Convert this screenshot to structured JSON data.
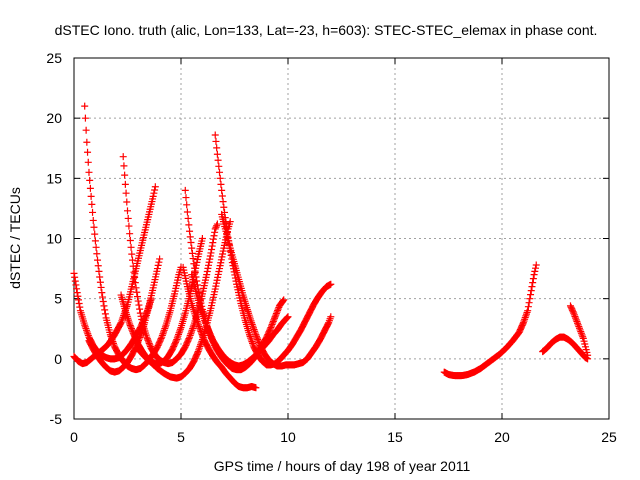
{
  "chart_data": {
    "type": "scatter",
    "title": "dSTEC Iono. truth (alic, Lon=133, Lat=-23, h=603): STEC-STEC_elemax in phase cont.",
    "xlabel": "GPS time / hours of day 198 of year 2011",
    "ylabel": "dSTEC  / TECUs",
    "xlim": [
      0,
      25
    ],
    "ylim": [
      -5,
      25
    ],
    "xticks": [
      0,
      5,
      10,
      15,
      20,
      25
    ],
    "yticks": [
      -5,
      0,
      5,
      10,
      15,
      20,
      25
    ],
    "grid": true,
    "marker": "plus",
    "color": "#ff0000",
    "series": [
      {
        "points": [
          [
            0.0,
            7.1
          ],
          [
            0.15,
            5.5
          ],
          [
            0.3,
            4.0
          ],
          [
            0.5,
            2.8
          ],
          [
            0.7,
            1.8
          ],
          [
            0.9,
            1.1
          ],
          [
            1.1,
            0.6
          ],
          [
            1.3,
            0.3
          ],
          [
            1.5,
            0.1
          ],
          [
            1.7,
            0.0
          ],
          [
            1.9,
            0.0
          ],
          [
            2.1,
            0.1
          ],
          [
            2.3,
            0.4
          ],
          [
            2.5,
            0.8
          ],
          [
            2.7,
            1.3
          ],
          [
            2.9,
            1.9
          ],
          [
            3.1,
            2.6
          ],
          [
            3.3,
            3.4
          ],
          [
            3.5,
            4.3
          ],
          [
            3.6,
            4.9
          ]
        ]
      },
      {
        "points": [
          [
            0.0,
            0.2
          ],
          [
            0.2,
            -0.2
          ],
          [
            0.4,
            -0.4
          ],
          [
            0.6,
            -0.3
          ],
          [
            0.8,
            0.0
          ],
          [
            1.0,
            0.3
          ],
          [
            1.3,
            0.7
          ],
          [
            1.6,
            1.2
          ],
          [
            1.9,
            2.0
          ],
          [
            2.2,
            3.0
          ],
          [
            2.5,
            4.5
          ],
          [
            2.7,
            6.0
          ],
          [
            2.9,
            7.5
          ],
          [
            3.1,
            9.0
          ],
          [
            3.3,
            10.5
          ],
          [
            3.5,
            12.0
          ],
          [
            3.7,
            13.5
          ],
          [
            3.8,
            14.3
          ]
        ]
      },
      {
        "points": [
          [
            0.5,
            21.0
          ],
          [
            0.6,
            18.0
          ],
          [
            0.7,
            15.5
          ],
          [
            0.8,
            13.5
          ],
          [
            0.9,
            11.5
          ],
          [
            1.0,
            9.8
          ],
          [
            1.1,
            8.2
          ],
          [
            1.2,
            6.8
          ],
          [
            1.3,
            5.5
          ],
          [
            1.4,
            4.4
          ],
          [
            1.5,
            3.4
          ],
          [
            1.7,
            2.0
          ],
          [
            1.9,
            1.0
          ],
          [
            2.1,
            0.3
          ],
          [
            2.3,
            -0.2
          ],
          [
            2.5,
            -0.6
          ],
          [
            2.7,
            -0.8
          ],
          [
            2.9,
            -0.9
          ],
          [
            3.1,
            -0.8
          ],
          [
            3.3,
            -0.5
          ],
          [
            3.5,
            -0.1
          ],
          [
            3.7,
            0.4
          ],
          [
            3.9,
            1.0
          ],
          [
            4.1,
            1.8
          ],
          [
            4.3,
            2.8
          ],
          [
            4.5,
            4.0
          ],
          [
            4.7,
            5.4
          ],
          [
            4.9,
            7.0
          ],
          [
            5.0,
            7.6
          ]
        ]
      },
      {
        "points": [
          [
            0.7,
            1.5
          ],
          [
            0.9,
            0.8
          ],
          [
            1.1,
            0.2
          ],
          [
            1.3,
            -0.3
          ],
          [
            1.5,
            -0.7
          ],
          [
            1.7,
            -1.0
          ],
          [
            1.9,
            -1.1
          ],
          [
            2.1,
            -1.0
          ],
          [
            2.3,
            -0.7
          ],
          [
            2.5,
            -0.3
          ],
          [
            2.7,
            0.3
          ],
          [
            2.9,
            1.0
          ],
          [
            3.1,
            1.9
          ],
          [
            3.3,
            3.0
          ],
          [
            3.5,
            4.4
          ],
          [
            3.7,
            5.9
          ],
          [
            3.9,
            7.5
          ],
          [
            4.0,
            8.3
          ]
        ]
      },
      {
        "points": [
          [
            2.3,
            16.8
          ],
          [
            2.4,
            14.5
          ],
          [
            2.5,
            12.3
          ],
          [
            2.6,
            10.4
          ],
          [
            2.7,
            8.7
          ],
          [
            2.8,
            7.2
          ],
          [
            2.9,
            5.9
          ],
          [
            3.0,
            4.8
          ],
          [
            3.1,
            3.8
          ],
          [
            3.2,
            3.0
          ],
          [
            3.4,
            1.8
          ],
          [
            3.6,
            0.9
          ],
          [
            3.8,
            0.3
          ],
          [
            4.0,
            -0.1
          ],
          [
            4.2,
            -0.3
          ],
          [
            4.4,
            -0.4
          ],
          [
            4.6,
            -0.3
          ],
          [
            4.8,
            0.0
          ],
          [
            5.0,
            0.4
          ],
          [
            5.2,
            1.0
          ],
          [
            5.4,
            1.8
          ],
          [
            5.6,
            2.8
          ],
          [
            5.8,
            4.0
          ],
          [
            6.0,
            5.4
          ],
          [
            6.2,
            7.0
          ],
          [
            6.4,
            8.8
          ],
          [
            6.6,
            10.8
          ],
          [
            6.7,
            11.2
          ]
        ]
      },
      {
        "points": [
          [
            2.2,
            5.3
          ],
          [
            2.4,
            4.0
          ],
          [
            2.6,
            2.9
          ],
          [
            2.8,
            2.0
          ],
          [
            3.0,
            1.2
          ],
          [
            3.2,
            0.6
          ],
          [
            3.4,
            0.1
          ],
          [
            3.6,
            -0.2
          ],
          [
            3.8,
            -0.4
          ],
          [
            4.0,
            -0.4
          ],
          [
            4.2,
            -0.2
          ],
          [
            4.4,
            0.2
          ],
          [
            4.6,
            0.8
          ],
          [
            4.8,
            1.6
          ],
          [
            5.0,
            2.6
          ],
          [
            5.2,
            3.8
          ],
          [
            5.4,
            5.2
          ],
          [
            5.6,
            6.8
          ],
          [
            5.8,
            8.5
          ],
          [
            6.0,
            10.0
          ]
        ]
      },
      {
        "points": [
          [
            3.0,
            0.8
          ],
          [
            3.3,
            0.2
          ],
          [
            3.6,
            -0.3
          ],
          [
            3.9,
            -0.8
          ],
          [
            4.2,
            -1.2
          ],
          [
            4.5,
            -1.5
          ],
          [
            4.8,
            -1.6
          ],
          [
            5.0,
            -1.5
          ],
          [
            5.2,
            -1.2
          ],
          [
            5.4,
            -0.8
          ],
          [
            5.6,
            -0.2
          ],
          [
            5.8,
            0.6
          ],
          [
            6.0,
            1.6
          ],
          [
            6.2,
            2.8
          ],
          [
            6.4,
            4.2
          ],
          [
            6.6,
            5.8
          ],
          [
            6.8,
            7.5
          ],
          [
            7.0,
            9.2
          ],
          [
            7.2,
            10.8
          ],
          [
            7.3,
            11.4
          ]
        ]
      },
      {
        "points": [
          [
            5.2,
            14.0
          ],
          [
            5.3,
            12.2
          ],
          [
            5.4,
            10.6
          ],
          [
            5.5,
            9.2
          ],
          [
            5.6,
            7.9
          ],
          [
            5.7,
            6.8
          ],
          [
            5.8,
            5.8
          ],
          [
            5.9,
            4.9
          ],
          [
            6.0,
            4.1
          ],
          [
            6.2,
            2.8
          ],
          [
            6.4,
            1.8
          ],
          [
            6.6,
            1.0
          ],
          [
            6.8,
            0.4
          ],
          [
            7.0,
            -0.1
          ],
          [
            7.2,
            -0.5
          ],
          [
            7.4,
            -0.8
          ],
          [
            7.6,
            -0.9
          ],
          [
            7.8,
            -0.9
          ],
          [
            8.0,
            -0.7
          ],
          [
            8.2,
            -0.4
          ],
          [
            8.4,
            0.0
          ],
          [
            8.6,
            0.5
          ],
          [
            8.8,
            1.1
          ],
          [
            9.0,
            1.8
          ],
          [
            9.2,
            2.6
          ],
          [
            9.4,
            3.5
          ],
          [
            9.6,
            4.4
          ],
          [
            9.8,
            4.9
          ]
        ]
      },
      {
        "points": [
          [
            5.1,
            7.6
          ],
          [
            5.3,
            6.0
          ],
          [
            5.5,
            4.6
          ],
          [
            5.7,
            3.4
          ],
          [
            5.9,
            2.4
          ],
          [
            6.1,
            1.5
          ],
          [
            6.3,
            0.8
          ],
          [
            6.5,
            0.2
          ],
          [
            6.7,
            -0.3
          ],
          [
            6.9,
            -0.7
          ],
          [
            7.1,
            -1.2
          ],
          [
            7.3,
            -1.6
          ],
          [
            7.5,
            -2.0
          ],
          [
            7.7,
            -2.3
          ],
          [
            7.9,
            -2.4
          ],
          [
            8.1,
            -2.4
          ],
          [
            8.3,
            -2.3
          ],
          [
            8.5,
            -2.4
          ]
        ]
      },
      {
        "points": [
          [
            6.6,
            18.6
          ],
          [
            6.7,
            17.0
          ],
          [
            6.8,
            15.5
          ],
          [
            6.9,
            14.0
          ],
          [
            7.0,
            12.6
          ],
          [
            7.1,
            11.3
          ],
          [
            7.2,
            10.1
          ],
          [
            7.4,
            8.0
          ],
          [
            7.6,
            6.2
          ],
          [
            7.8,
            4.6
          ],
          [
            8.0,
            3.2
          ],
          [
            8.2,
            2.0
          ],
          [
            8.4,
            1.0
          ],
          [
            8.6,
            0.3
          ],
          [
            8.8,
            -0.2
          ],
          [
            9.0,
            -0.5
          ],
          [
            9.2,
            -0.5
          ],
          [
            9.4,
            -0.4
          ],
          [
            9.6,
            -0.1
          ],
          [
            9.8,
            0.3
          ],
          [
            10.0,
            0.7
          ],
          [
            10.2,
            1.2
          ],
          [
            10.4,
            1.8
          ],
          [
            10.6,
            2.4
          ],
          [
            10.8,
            3.1
          ],
          [
            11.0,
            3.8
          ],
          [
            11.2,
            4.5
          ],
          [
            11.4,
            5.1
          ],
          [
            11.6,
            5.6
          ],
          [
            11.8,
            6.0
          ],
          [
            12.0,
            6.2
          ]
        ]
      },
      {
        "points": [
          [
            5.5,
            7.0
          ],
          [
            5.7,
            5.6
          ],
          [
            5.9,
            4.3
          ],
          [
            6.1,
            3.2
          ],
          [
            6.3,
            2.3
          ],
          [
            6.5,
            1.5
          ],
          [
            6.7,
            0.9
          ],
          [
            6.9,
            0.4
          ],
          [
            7.1,
            0.0
          ],
          [
            7.3,
            -0.3
          ],
          [
            7.5,
            -0.5
          ],
          [
            7.7,
            -0.6
          ],
          [
            7.9,
            -0.5
          ],
          [
            8.1,
            -0.3
          ],
          [
            8.3,
            0.0
          ],
          [
            8.5,
            0.3
          ],
          [
            8.7,
            0.7
          ],
          [
            8.9,
            1.1
          ],
          [
            9.1,
            1.5
          ],
          [
            9.3,
            2.0
          ],
          [
            9.5,
            2.4
          ],
          [
            9.7,
            2.9
          ],
          [
            9.9,
            3.3
          ],
          [
            10.0,
            3.5
          ]
        ]
      },
      {
        "points": [
          [
            6.9,
            12.0
          ],
          [
            7.1,
            10.6
          ],
          [
            7.3,
            9.2
          ],
          [
            7.5,
            7.9
          ],
          [
            7.7,
            6.6
          ],
          [
            7.9,
            5.3
          ],
          [
            8.1,
            4.1
          ],
          [
            8.3,
            3.0
          ],
          [
            8.5,
            2.0
          ],
          [
            8.7,
            1.1
          ],
          [
            8.9,
            0.4
          ],
          [
            9.1,
            -0.1
          ],
          [
            9.3,
            -0.4
          ],
          [
            9.5,
            -0.6
          ],
          [
            9.7,
            -0.6
          ],
          [
            9.9,
            -0.5
          ],
          [
            10.1,
            -0.5
          ],
          [
            10.3,
            -0.5
          ],
          [
            10.5,
            -0.4
          ],
          [
            10.7,
            -0.3
          ],
          [
            10.9,
            0.0
          ],
          [
            11.1,
            0.5
          ],
          [
            11.3,
            1.0
          ],
          [
            11.5,
            1.6
          ],
          [
            11.7,
            2.3
          ],
          [
            11.9,
            3.0
          ],
          [
            12.0,
            3.5
          ]
        ]
      },
      {
        "points": [
          [
            17.3,
            -1.1
          ],
          [
            17.5,
            -1.3
          ],
          [
            17.8,
            -1.4
          ],
          [
            18.1,
            -1.4
          ],
          [
            18.4,
            -1.3
          ],
          [
            18.7,
            -1.1
          ],
          [
            19.0,
            -0.8
          ],
          [
            19.3,
            -0.4
          ],
          [
            19.6,
            0.0
          ],
          [
            19.9,
            0.4
          ],
          [
            20.2,
            0.9
          ],
          [
            20.5,
            1.5
          ],
          [
            20.8,
            2.2
          ],
          [
            21.0,
            3.0
          ],
          [
            21.2,
            4.0
          ],
          [
            21.3,
            5.0
          ],
          [
            21.4,
            6.0
          ],
          [
            21.5,
            7.0
          ],
          [
            21.6,
            7.8
          ]
        ]
      },
      {
        "points": [
          [
            21.9,
            0.6
          ],
          [
            22.1,
            0.9
          ],
          [
            22.3,
            1.3
          ],
          [
            22.5,
            1.6
          ],
          [
            22.7,
            1.8
          ],
          [
            22.9,
            1.8
          ],
          [
            23.1,
            1.6
          ],
          [
            23.3,
            1.3
          ],
          [
            23.5,
            0.9
          ],
          [
            23.7,
            0.5
          ],
          [
            23.9,
            0.1
          ],
          [
            24.0,
            0.0
          ]
        ]
      },
      {
        "points": [
          [
            23.2,
            4.4
          ],
          [
            23.35,
            3.8
          ],
          [
            23.5,
            3.1
          ],
          [
            23.65,
            2.4
          ],
          [
            23.8,
            1.7
          ],
          [
            23.9,
            1.0
          ],
          [
            24.0,
            0.3
          ]
        ]
      }
    ]
  }
}
